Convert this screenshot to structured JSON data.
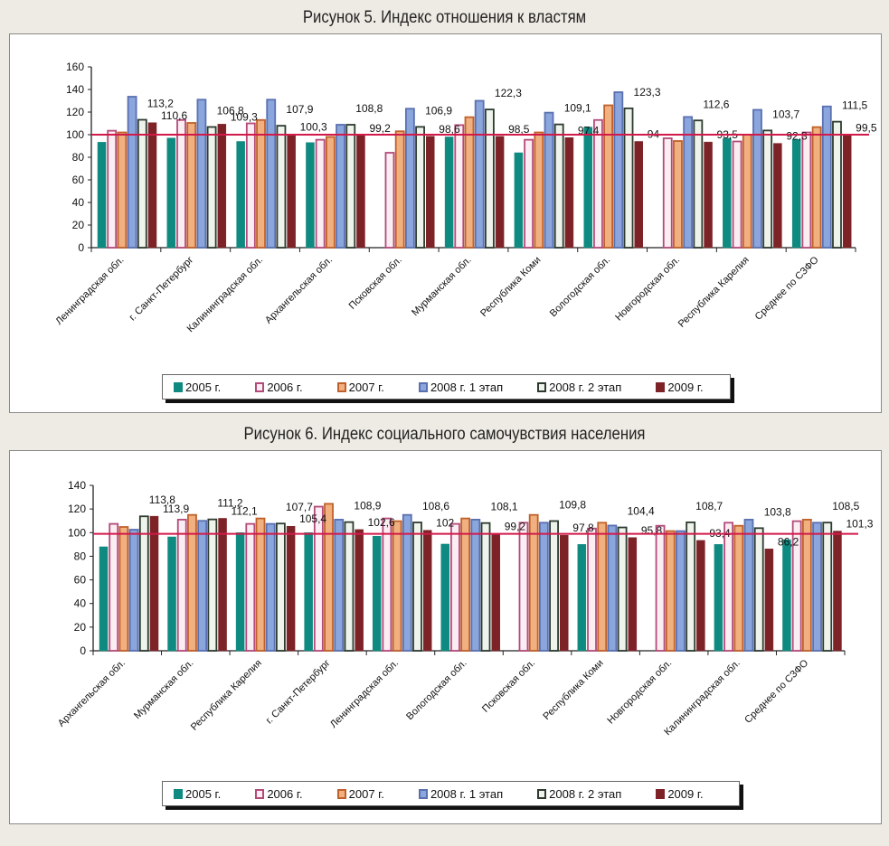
{
  "colors": {
    "2005": "#0e8a80",
    "2006": "#b44a7a",
    "2007": "#d9824a",
    "2008_1": "#8aa6dc",
    "2008_2": "#2d3b2f",
    "2009": "#7d2327",
    "reference": "#d21a4a"
  },
  "chart_data": [
    {
      "type": "bar",
      "title": "Рисунок 5. Индекс отношения к властям",
      "categories": [
        "Ленинградская обл.",
        "г. Санкт-Петербург",
        "Калининградская обл.",
        "Архангельская обл.",
        "Псковская обл.",
        "Мурманская обл.",
        "Республика Коми",
        "Вологодская обл.",
        "Новгородская обл.",
        "Республика Карелия",
        "Среднее по СЗФО"
      ],
      "ylim": [
        0,
        160
      ],
      "yticks": [
        "0",
        "20",
        "40",
        "60",
        "80",
        "100",
        "120",
        "140",
        "160"
      ],
      "reference_line": 100,
      "legend": [
        "2005 г.",
        "2006 г.",
        "2007 г.",
        "2008 г. 1 этап",
        "2008 г. 2 этап",
        "2009 г."
      ],
      "legend_position": "bottom",
      "series": [
        {
          "name": "2005 г.",
          "values": [
            93.3,
            97,
            94,
            93,
            null,
            98,
            84,
            106.7,
            null,
            96.8,
            95.7
          ]
        },
        {
          "name": "2006 г.",
          "values": [
            103.5,
            113,
            110,
            95.5,
            84,
            108.5,
            95.5,
            113,
            96.8,
            94,
            102
          ]
        },
        {
          "name": "2007 г.",
          "values": [
            102,
            110.4,
            113,
            98,
            103,
            115.5,
            102,
            126,
            94.4,
            100,
            106.7
          ]
        },
        {
          "name": "2008 г. 1 этап",
          "values": [
            133.6,
            131,
            131,
            108.8,
            123,
            130,
            119.5,
            137.6,
            115.7,
            122,
            125
          ]
        },
        {
          "name": "2008 г. 2 этап",
          "values": [
            113.2,
            106.8,
            107.9,
            108.8,
            106.9,
            122.3,
            109.1,
            123.3,
            112.6,
            103.7,
            111.5
          ]
        },
        {
          "name": "2009 г.",
          "values": [
            110.6,
            109.3,
            100.3,
            99.2,
            98.6,
            98.5,
            97.4,
            94,
            93.5,
            92.3,
            99.5
          ]
        }
      ],
      "data_labels": {
        "2008 г. 2 этап": [
          "113,2",
          "106,8",
          "107,9",
          "108,8",
          "106,9",
          "122,3",
          "109,1",
          "123,3",
          "112,6",
          "103,7",
          "111,5"
        ],
        "2009 г.": [
          "110,6",
          "109,3",
          "100,3",
          "99,2",
          "98,6",
          "98,5",
          "97,4",
          "94",
          "93,5",
          "92,3",
          "99,5"
        ]
      }
    },
    {
      "type": "bar",
      "title": "Рисунок 6. Индекс социального самочувствия населения",
      "categories": [
        "Архангельская обл.",
        "Мурманская обл.",
        "Республика Карелия",
        "г. Санкт-Петербург",
        "Ленинградская обл.",
        "Вологодская обл.",
        "Псковская обл.",
        "Республика Коми",
        "Новгородская обл.",
        "Калининградская обл.",
        "Среднее по СЗФО"
      ],
      "ylim": [
        0,
        140
      ],
      "yticks": [
        "0",
        "20",
        "40",
        "60",
        "80",
        "100",
        "120",
        "140"
      ],
      "reference_line": 99,
      "legend": [
        "2005 г.",
        "2006 г.",
        "2007 г.",
        "2008 г. 1 этап",
        "2008 г. 2 этап",
        "2009 г."
      ],
      "legend_position": "bottom",
      "series": [
        {
          "name": "2005 г.",
          "values": [
            88,
            96.4,
            100,
            100,
            97,
            90.3,
            null,
            90,
            null,
            90,
            94
          ]
        },
        {
          "name": "2006 г.",
          "values": [
            107.4,
            111,
            107.4,
            122,
            112,
            107.4,
            108.4,
            103.5,
            105.8,
            108.4,
            109.7
          ]
        },
        {
          "name": "2007 г.",
          "values": [
            104.8,
            115,
            112,
            124.4,
            109.7,
            112,
            115,
            108.4,
            101.3,
            105.8,
            111
          ]
        },
        {
          "name": "2008 г. 1 этап",
          "values": [
            102.5,
            110,
            107.4,
            111,
            115,
            111,
            108.4,
            106,
            101.3,
            111,
            108.4
          ]
        },
        {
          "name": "2008 г. 2 этап",
          "values": [
            113.8,
            111.2,
            107.7,
            108.9,
            108.6,
            108.1,
            109.8,
            104.4,
            108.7,
            103.8,
            108.5
          ]
        },
        {
          "name": "2009 г.",
          "values": [
            113.9,
            112.1,
            105.4,
            102.6,
            102,
            99.2,
            97.8,
            95.8,
            93.4,
            86.2,
            101.3
          ]
        }
      ],
      "data_labels": {
        "2008 г. 2 этап": [
          "113,8",
          "111,2",
          "107,7",
          "108,9",
          "108,6",
          "108,1",
          "109,8",
          "104,4",
          "108,7",
          "103,8",
          "108,5"
        ],
        "2009 г.": [
          "113,9",
          "112,1",
          "105,4",
          "102,6",
          "102",
          "99,2",
          "97,8",
          "95,8",
          "93,4",
          "86,2",
          "101,3"
        ]
      }
    }
  ]
}
